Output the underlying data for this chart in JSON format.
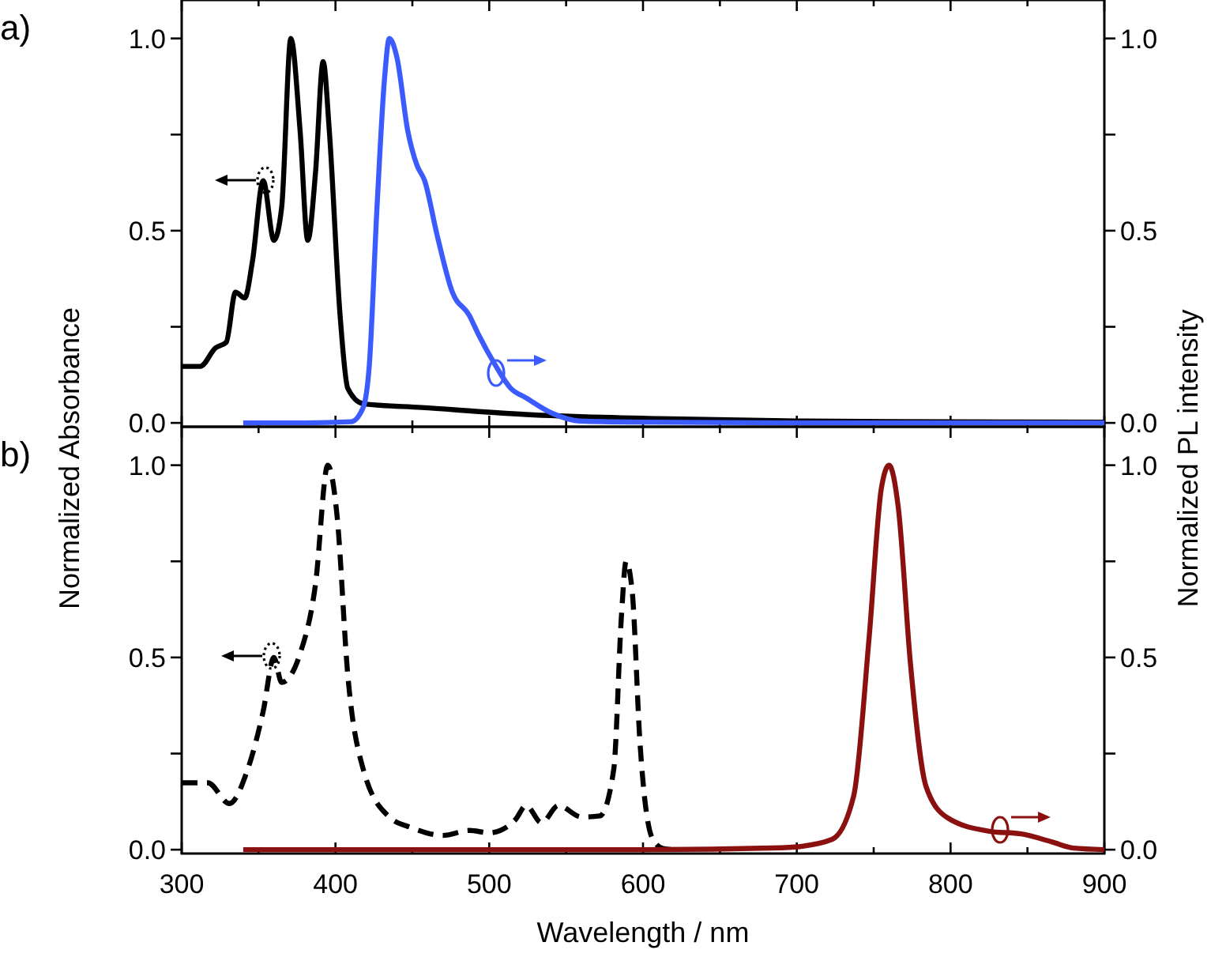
{
  "chart_data": [
    {
      "type": "line",
      "annotations": [
        "a)"
      ],
      "ylabel": "Normalized Absorbance",
      "y2label": "Normalized PL intensity",
      "xlim": [
        300,
        900
      ],
      "xticks": [
        300,
        {
          "value": 350,
          "label": null
        },
        400,
        {
          "value": 450,
          "label": null
        },
        500,
        {
          "value": 550,
          "label": null
        },
        600,
        {
          "value": 650,
          "label": null
        },
        700,
        {
          "value": 750,
          "label": null
        },
        800,
        {
          "value": 850,
          "label": null
        },
        900
      ],
      "ylim": [
        -0.01,
        1.1
      ],
      "yticks": [
        {
          "value": 0,
          "label": "0.0"
        },
        {
          "value": 0.25,
          "label": null
        },
        0.5,
        {
          "value": 0.75,
          "label": null
        },
        {
          "value": 1,
          "label": "1.0"
        }
      ],
      "y2lim": [
        -0.01,
        1.1
      ],
      "y2ticks": [
        {
          "value": 0,
          "label": "0.0"
        },
        {
          "value": 0.25,
          "label": null
        },
        0.5,
        {
          "value": 0.75,
          "label": null
        },
        {
          "value": 1,
          "label": "1.0"
        }
      ],
      "tick_labels": "y",
      "series": [
        {
          "color": "#000000",
          "line_style": "solid",
          "axis": "y",
          "x": [
            300,
            312,
            322,
            329,
            335,
            341,
            346,
            353,
            360,
            365,
            371,
            377,
            382,
            387,
            392,
            396,
            403,
            408,
            418,
            456,
            524,
            610,
            700,
            800,
            900
          ],
          "values": [
            0.147,
            0.147,
            0.195,
            0.21,
            0.34,
            0.325,
            0.42,
            0.63,
            0.475,
            0.56,
            1.0,
            0.76,
            0.475,
            0.65,
            0.94,
            0.76,
            0.28,
            0.09,
            0.05,
            0.04,
            0.022,
            0.011,
            0.005,
            0.003,
            0.002
          ]
        },
        {
          "color": "#3b5bfd",
          "line_style": "solid",
          "axis": "y2",
          "x": [
            340,
            380,
            410,
            418,
            422,
            427,
            432,
            435,
            440,
            447,
            453,
            458,
            466,
            476,
            487,
            493,
            504,
            514,
            524,
            541,
            559,
            600,
            700,
            800,
            900
          ],
          "values": [
            0,
            0,
            0.003,
            0.04,
            0.15,
            0.56,
            0.9,
            1.0,
            0.95,
            0.76,
            0.67,
            0.63,
            0.49,
            0.34,
            0.28,
            0.23,
            0.15,
            0.09,
            0.065,
            0.025,
            0.005,
            0.002,
            0,
            0,
            0
          ]
        }
      ]
    },
    {
      "type": "line",
      "annotations": [
        "b)"
      ],
      "xlabel": "Wavelength / nm",
      "xlim": [
        300,
        900
      ],
      "xticks": [
        300,
        {
          "value": 350,
          "label": null
        },
        400,
        {
          "value": 450,
          "label": null
        },
        500,
        {
          "value": 550,
          "label": null
        },
        600,
        {
          "value": 650,
          "label": null
        },
        700,
        {
          "value": 750,
          "label": null
        },
        800,
        {
          "value": 850,
          "label": null
        },
        900
      ],
      "ylim": [
        -0.01,
        1.1
      ],
      "yticks": [
        {
          "value": 0,
          "label": "0.0"
        },
        {
          "value": 0.25,
          "label": null
        },
        0.5,
        {
          "value": 0.75,
          "label": null
        },
        {
          "value": 1,
          "label": "1.0"
        }
      ],
      "y2lim": [
        -0.01,
        1.1
      ],
      "y2ticks": [
        {
          "value": 0,
          "label": "0.0"
        },
        {
          "value": 0.25,
          "label": null
        },
        0.5,
        {
          "value": 0.75,
          "label": null
        },
        {
          "value": 1,
          "label": "1.0"
        }
      ],
      "series": [
        {
          "color": "#000000",
          "line_style": "dashed",
          "axis": "y",
          "x": [
            300,
            317,
            331,
            343,
            353,
            360,
            365,
            377,
            387,
            395,
            401,
            408,
            418,
            435,
            449,
            470,
            487,
            500,
            517,
            524,
            534,
            545,
            560,
            572,
            581,
            586,
            589,
            593,
            598,
            606,
            613,
            620
          ],
          "values": [
            0.174,
            0.174,
            0.12,
            0.21,
            0.36,
            0.5,
            0.435,
            0.51,
            0.69,
            1.0,
            0.87,
            0.455,
            0.21,
            0.085,
            0.058,
            0.037,
            0.05,
            0.044,
            0.078,
            0.115,
            0.07,
            0.115,
            0.085,
            0.088,
            0.21,
            0.61,
            0.75,
            0.67,
            0.28,
            0.03,
            0.003,
            0
          ]
        },
        {
          "color": "#8b1010",
          "line_style": "solid",
          "axis": "y2",
          "x": [
            340,
            500,
            600,
            690,
            699,
            723,
            737,
            747,
            755,
            760,
            766,
            774,
            784,
            798,
            825,
            846,
            866,
            880,
            900
          ],
          "values": [
            0,
            0,
            0,
            0.005,
            0.007,
            0.027,
            0.14,
            0.55,
            0.94,
            1.0,
            0.89,
            0.48,
            0.165,
            0.083,
            0.048,
            0.041,
            0.02,
            0.004,
            0
          ]
        }
      ]
    }
  ]
}
